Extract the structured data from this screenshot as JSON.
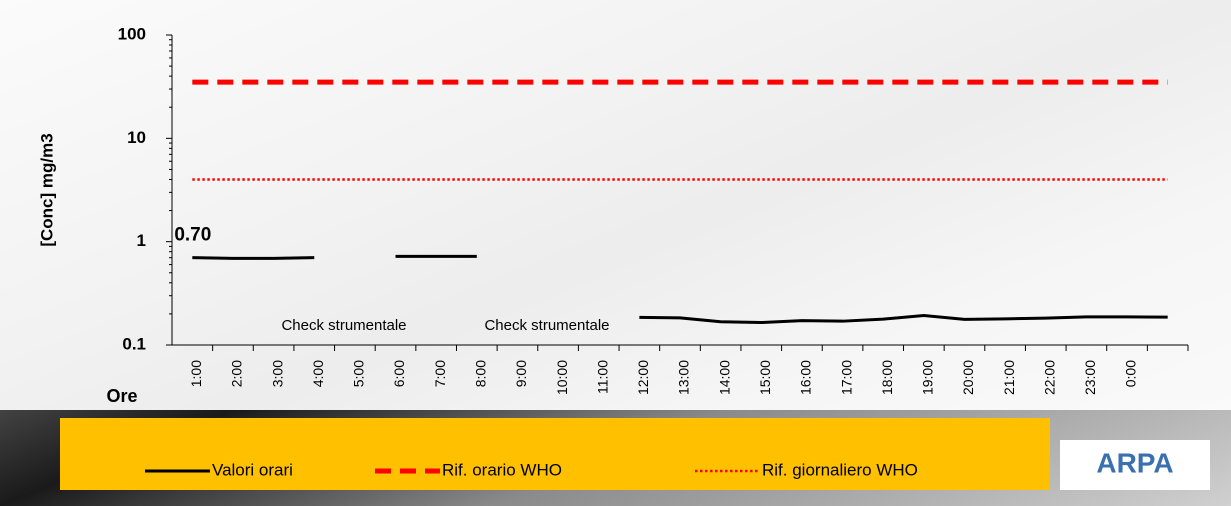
{
  "chart_data": {
    "type": "line",
    "ylabel": "[Conc] mg/m3",
    "xlabel": "Ore",
    "categories": [
      "1:00",
      "2:00",
      "3:00",
      "4:00",
      "5:00",
      "6:00",
      "7:00",
      "8:00",
      "9:00",
      "10:00",
      "11:00",
      "12:00",
      "13:00",
      "14:00",
      "15:00",
      "16:00",
      "17:00",
      "18:00",
      "19:00",
      "20:00",
      "21:00",
      "22:00",
      "23:00",
      "0:00",
      null
    ],
    "series": [
      {
        "name": "Valori orari",
        "color": "#000000",
        "style": "solid",
        "values": [
          0.7,
          0.69,
          0.69,
          0.7,
          null,
          0.72,
          0.72,
          0.72,
          null,
          null,
          null,
          0.185,
          0.183,
          0.168,
          0.165,
          0.172,
          0.17,
          0.178,
          0.193,
          0.177,
          0.179,
          0.182,
          0.187,
          0.187,
          0.186
        ],
        "value_labels": [
          "0.70",
          null,
          null,
          null,
          null,
          null,
          null,
          null,
          null,
          null,
          null,
          null,
          null,
          null,
          null,
          null,
          null,
          null,
          null,
          null,
          null,
          null,
          null,
          null,
          null
        ]
      },
      {
        "name": "Rif. orario WHO",
        "color": "#ff0000",
        "style": "dashed",
        "values": [
          35,
          35,
          35,
          35,
          35,
          35,
          35,
          35,
          35,
          35,
          35,
          35,
          35,
          35,
          35,
          35,
          35,
          35,
          35,
          35,
          35,
          35,
          35,
          35,
          35
        ]
      },
      {
        "name": "Rif. giornaliero WHO",
        "color": "#ff0000",
        "style": "dotted",
        "values": [
          4,
          4,
          4,
          4,
          4,
          4,
          4,
          4,
          4,
          4,
          4,
          4,
          4,
          4,
          4,
          4,
          4,
          4,
          4,
          4,
          4,
          4,
          4,
          4,
          4
        ]
      }
    ],
    "annotations": [
      {
        "text": "Check strumentale"
      },
      {
        "text": "Check strumentale"
      }
    ],
    "logo": "ARPA",
    "log_scale": true,
    "ylim": [
      0.1,
      100
    ],
    "yticks": [
      0.1,
      1,
      10,
      100
    ]
  }
}
